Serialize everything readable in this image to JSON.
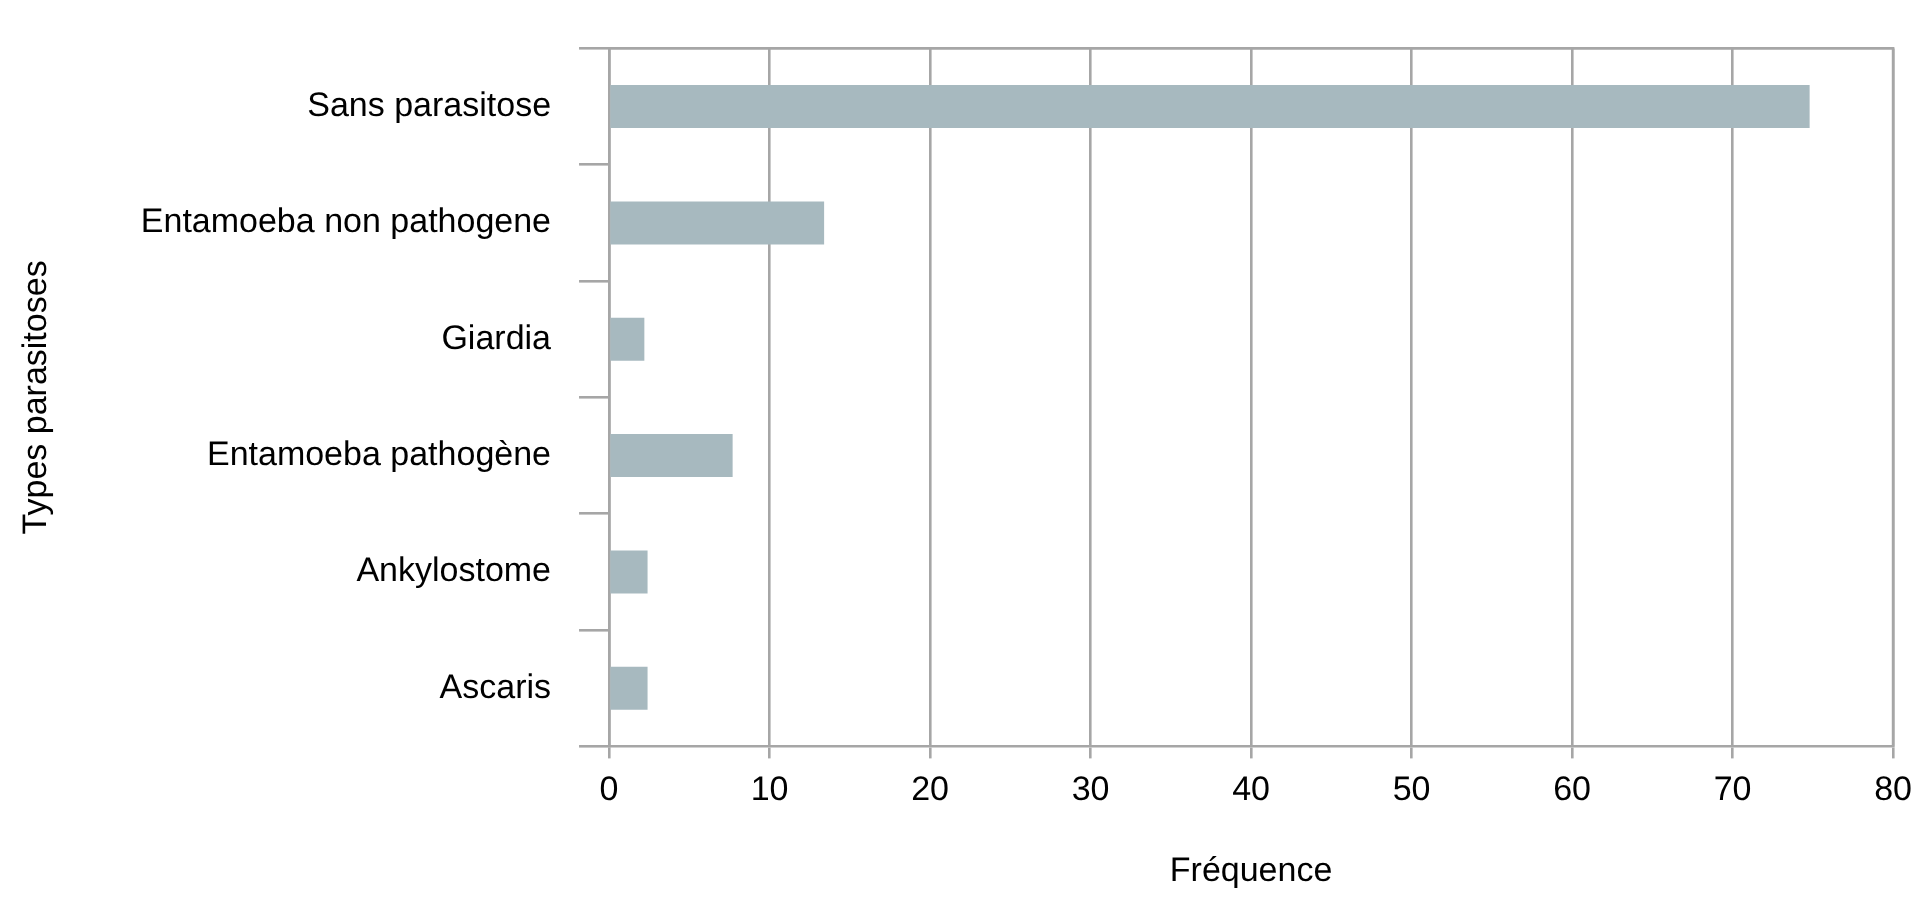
{
  "chart_data": {
    "type": "bar",
    "orientation": "horizontal",
    "xlabel": "Fréquence",
    "ylabel": "Types parasitoses",
    "categories": [
      "Sans parasitose",
      "Entamoeba non pathogene",
      "Giardia",
      "Entamoeba pathogène",
      "Ankylostome",
      "Ascaris"
    ],
    "values": [
      74.8,
      13.4,
      2.2,
      7.7,
      2.4,
      2.4
    ],
    "color": "#a7b9bf",
    "xlim": [
      0,
      80
    ],
    "xticks": [
      0,
      10,
      20,
      30,
      40,
      50,
      60,
      70,
      80
    ],
    "grid": "x",
    "legend": false
  }
}
